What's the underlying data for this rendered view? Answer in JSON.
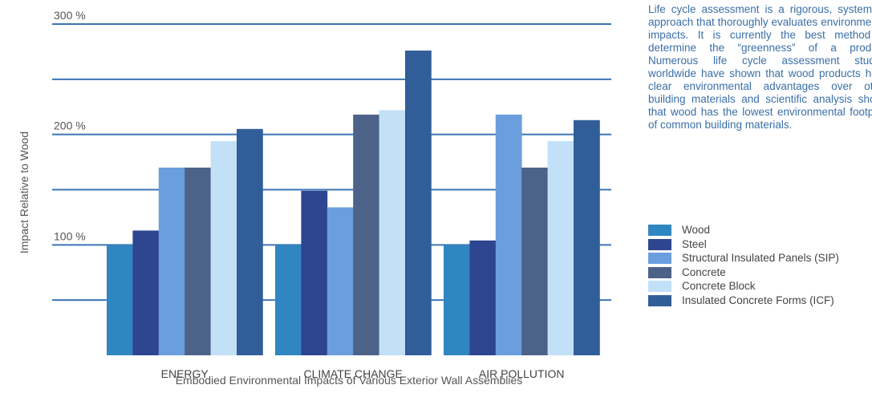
{
  "chart_data": {
    "type": "bar",
    "title": "Embodied Environmental Impacts of Various Exterior Wall Assemblies",
    "ylabel": "Impact Relative to Wood",
    "xlabel": "",
    "ylim": [
      0,
      300
    ],
    "ytick_labels": [
      {
        "value": 100,
        "label": "100 %"
      },
      {
        "value": 200,
        "label": "200 %"
      },
      {
        "value": 300,
        "label": "300 %"
      }
    ],
    "gridlines": [
      50,
      100,
      150,
      200,
      250,
      300
    ],
    "grid": true,
    "categories": [
      "ENERGY",
      "CLIMATE CHANGE",
      "AIR POLLUTION"
    ],
    "series": [
      {
        "name": "Wood",
        "color": "#3086c0",
        "values": [
          100,
          100,
          100
        ]
      },
      {
        "name": "Steel",
        "color": "#2e4590",
        "values": [
          113,
          149,
          104
        ]
      },
      {
        "name": "Structural Insulated Panels (SIP)",
        "color": "#6b9edd",
        "values": [
          170,
          134,
          218
        ]
      },
      {
        "name": "Concrete",
        "color": "#4d6289",
        "values": [
          170,
          218,
          170
        ]
      },
      {
        "name": "Concrete Block",
        "color": "#c2e0f7",
        "values": [
          194,
          222,
          194
        ]
      },
      {
        "name": "Insulated Concrete Forms (ICF)",
        "color": "#315e99",
        "values": [
          205,
          276,
          213
        ]
      }
    ],
    "legend_position": "right",
    "grid_color": "#3b75b4"
  },
  "description": "Life cycle assessment is a rigorous, systematic approach that thoroughly evaluates environmental impacts. It is currently the best method to determine the “greenness” of a product. Numerous life cycle assessment studies worldwide have shown that wood products have clear environmental advantages over other building materials and scientific analysis shows that wood has the lowest environmental footprint of common building materials."
}
